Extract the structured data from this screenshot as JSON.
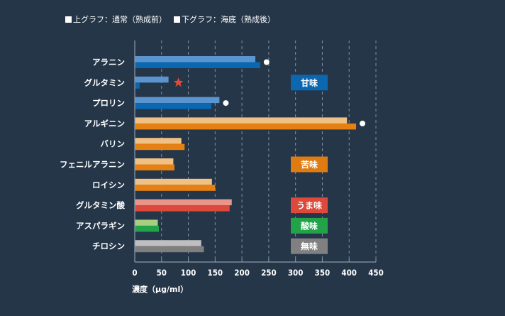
{
  "legend": {
    "top_label": "上グラフ：通常（熟成前）",
    "bottom_label": "下グラフ：海底（熟成後）"
  },
  "chart_data": {
    "type": "bar",
    "orientation": "horizontal",
    "title": "",
    "xlabel": "濃度（μg/ml）",
    "ylabel": "",
    "xlim": [
      0,
      450
    ],
    "xticks": [
      0,
      50,
      100,
      150,
      200,
      250,
      300,
      350,
      400,
      450
    ],
    "grid": true,
    "categories": [
      "アラニン",
      "グルタミン",
      "プロリン",
      "アルギニン",
      "バリン",
      "フェニルアラニン",
      "ロイシン",
      "グルタミン酸",
      "アスパラギン",
      "チロシン"
    ],
    "series": [
      {
        "name": "上グラフ：通常（熟成前）",
        "values": [
          225,
          63,
          158,
          396,
          87,
          72,
          144,
          181,
          43,
          124
        ]
      },
      {
        "name": "下グラフ：海底（熟成後）",
        "values": [
          234,
          9,
          143,
          413,
          93,
          74,
          150,
          177,
          45,
          129
        ]
      }
    ],
    "category_taste": [
      "甘味",
      "甘味",
      "甘味",
      "苦味",
      "苦味",
      "苦味",
      "苦味",
      "うま味",
      "酸味",
      "無味"
    ],
    "taste_colors": {
      "甘味": {
        "light": "#5b95d0",
        "dark": "#0b67b0"
      },
      "苦味": {
        "light": "#efc184",
        "dark": "#e58113"
      },
      "うま味": {
        "light": "#e8958a",
        "dark": "#dd4a3b"
      },
      "酸味": {
        "light": "#a8cf7f",
        "dark": "#22a34a"
      },
      "無味": {
        "light": "#bfbfbf",
        "dark": "#7f7f7f"
      }
    },
    "markers": [
      {
        "category": "アラニン",
        "symbol": "circle",
        "color": "#ffffff"
      },
      {
        "category": "グルタミン",
        "symbol": "star",
        "color": "#e04a3a"
      },
      {
        "category": "プロリン",
        "symbol": "circle",
        "color": "#ffffff"
      },
      {
        "category": "アルギニン",
        "symbol": "circle",
        "color": "#ffffff"
      }
    ],
    "badges": [
      {
        "label": "甘味",
        "category": "グルタミン",
        "color": "#0b67b0"
      },
      {
        "label": "苦味",
        "category": "フェニルアラニン",
        "color": "#e07b12"
      },
      {
        "label": "うま味",
        "category": "グルタミン酸",
        "color": "#dd4a3b"
      },
      {
        "label": "酸味",
        "category": "アスパラギン",
        "color": "#22a34a"
      },
      {
        "label": "無味",
        "category": "チロシン",
        "color": "#808080"
      }
    ]
  }
}
